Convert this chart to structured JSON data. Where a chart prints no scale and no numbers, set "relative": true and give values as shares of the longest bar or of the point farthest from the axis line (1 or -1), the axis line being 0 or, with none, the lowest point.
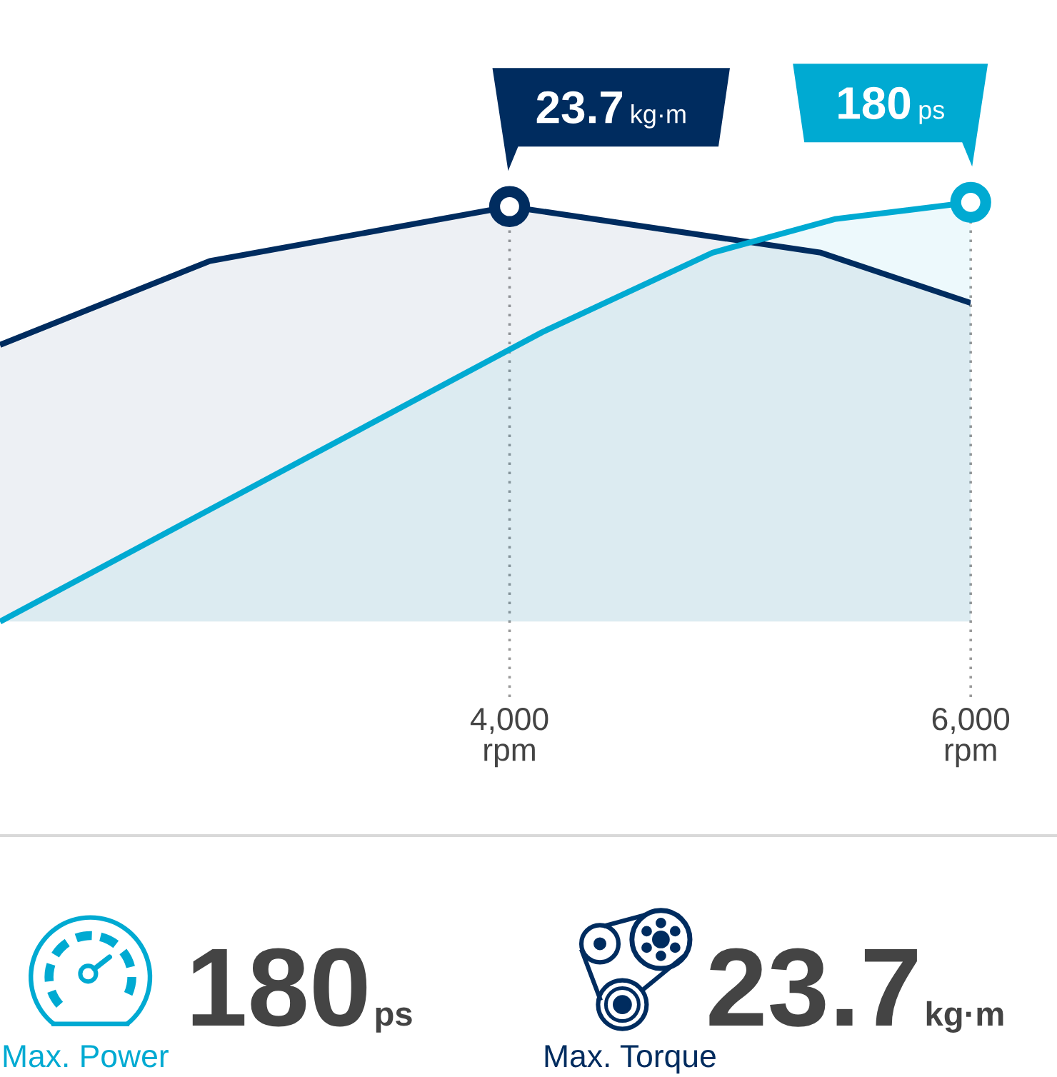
{
  "chart_data": [
    {
      "type": "area",
      "relative": true,
      "xlim": [
        1790,
        6000
      ],
      "xticks": [
        {
          "value": 4000,
          "label": "4,000\nrpm"
        },
        {
          "value": 6000,
          "label": "6,000\nrpm"
        }
      ],
      "tick_labels": "x",
      "grid": "x",
      "series": [
        {
          "type": "area",
          "color": "#002c5f",
          "x": [
            1790,
            2700,
            4000,
            5350,
            6000
          ],
          "values": [
            0.66,
            0.86,
            0.99,
            0.88,
            0.76
          ]
        },
        {
          "type": "area",
          "color": "#00aad2",
          "x": [
            1790,
            4140,
            4880,
            5410,
            6000
          ],
          "values": [
            0,
            0.69,
            0.88,
            0.96,
            1
          ]
        }
      ],
      "annotations": [
        {
          "text": "23.7 kg·m",
          "x": 4000,
          "y": 0.99
        },
        {
          "text": "180 ps",
          "x": 6000,
          "y": 1
        }
      ]
    },
    {
      "type": "other",
      "colors": [
        "#00aad2",
        "#002c5f"
      ],
      "annotations": [
        "180 ps",
        "Max. Power",
        "23.7 kg·m",
        "Max. Torque"
      ]
    }
  ]
}
